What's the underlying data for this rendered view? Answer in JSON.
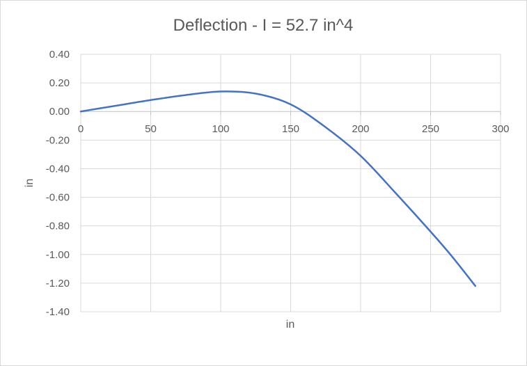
{
  "chart_data": {
    "type": "line",
    "title": "Deflection - I = 52.7 in^4",
    "xlabel": "in",
    "ylabel": "in",
    "xlim": [
      0,
      300
    ],
    "ylim": [
      -1.4,
      0.4
    ],
    "x_ticks": [
      "0",
      "50",
      "100",
      "150",
      "200",
      "250",
      "300"
    ],
    "y_ticks": [
      "0.40",
      "0.20",
      "0.00",
      "-0.20",
      "-0.40",
      "-0.60",
      "-0.80",
      "-1.00",
      "-1.20",
      "-1.40"
    ],
    "grid": true,
    "legend": "none",
    "series": [
      {
        "color": "#4472c4",
        "x": [
          0,
          25,
          50,
          75,
          100,
          125,
          150,
          175,
          200,
          225,
          250,
          265,
          282
        ],
        "y": [
          0.0,
          0.04,
          0.08,
          0.115,
          0.14,
          0.125,
          0.05,
          -0.11,
          -0.31,
          -0.57,
          -0.84,
          -1.01,
          -1.22
        ]
      }
    ]
  }
}
